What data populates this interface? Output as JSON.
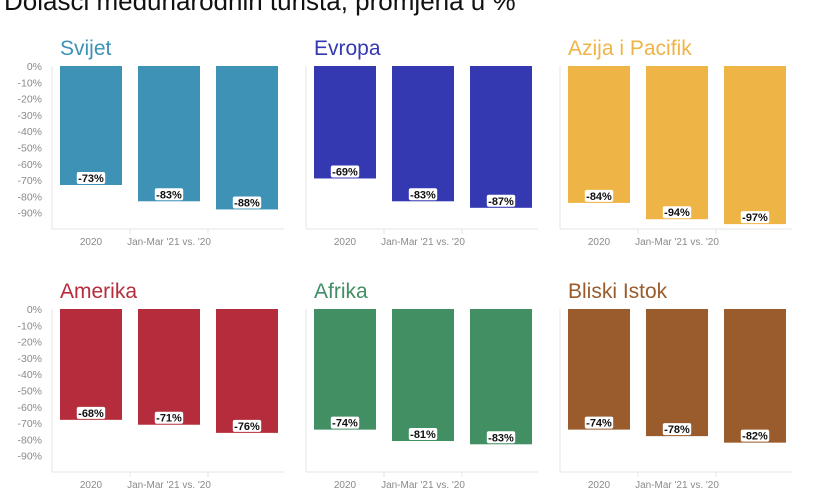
{
  "title": "Dolasci međunarodnih turista, promjena u %",
  "chart_data": [
    {
      "type": "bar",
      "title": "Svijet",
      "color": "#3d92b6",
      "categories": [
        "2020",
        "Jan-Mar '21 vs. '20",
        ""
      ],
      "values": [
        -73,
        -83,
        -88
      ],
      "labels": [
        "-73%",
        "-83%",
        "-88%"
      ],
      "ylim": [
        -100,
        0
      ],
      "yticks": [
        "0%",
        "-10%",
        "-20%",
        "-30%",
        "-40%",
        "-50%",
        "-60%",
        "-70%",
        "-80%",
        "-90%"
      ],
      "grid": false
    },
    {
      "type": "bar",
      "title": "Evropa",
      "color": "#3439b2",
      "categories": [
        "2020",
        "Jan-Mar '21 vs. '20",
        ""
      ],
      "values": [
        -69,
        -83,
        -87
      ],
      "labels": [
        "-69%",
        "-83%",
        "-87%"
      ],
      "ylim": [
        -100,
        0
      ],
      "yticks": [],
      "grid": false
    },
    {
      "type": "bar",
      "title": "Azija i Pacifik",
      "color": "#efb446",
      "categories": [
        "2020",
        "Jan-Mar '21 vs. '20",
        ""
      ],
      "values": [
        -84,
        -94,
        -97
      ],
      "labels": [
        "-84%",
        "-94%",
        "-97%"
      ],
      "ylim": [
        -100,
        0
      ],
      "yticks": [],
      "grid": false
    },
    {
      "type": "bar",
      "title": "Amerika",
      "color": "#b52d3c",
      "categories": [
        "2020",
        "Jan-Mar '21 vs. '20",
        ""
      ],
      "values": [
        -68,
        -71,
        -76
      ],
      "labels": [
        "-68%",
        "-71%",
        "-76%"
      ],
      "ylim": [
        -100,
        0
      ],
      "yticks": [
        "0%",
        "-10%",
        "-20%",
        "-30%",
        "-40%",
        "-50%",
        "-60%",
        "-70%",
        "-80%",
        "-90%"
      ],
      "grid": false
    },
    {
      "type": "bar",
      "title": "Afrika",
      "color": "#418f63",
      "categories": [
        "2020",
        "Jan-Mar '21 vs. '20",
        ""
      ],
      "values": [
        -74,
        -81,
        -83
      ],
      "labels": [
        "-74%",
        "-81%",
        "-83%"
      ],
      "ylim": [
        -100,
        0
      ],
      "yticks": [],
      "grid": false
    },
    {
      "type": "bar",
      "title": "Bliski Istok",
      "color": "#9a5c2c",
      "categories": [
        "2020",
        "Jan-Mar '21 vs. '20",
        ""
      ],
      "values": [
        -74,
        -78,
        -82
      ],
      "labels": [
        "-74%",
        "-78%",
        "-82%"
      ],
      "ylim": [
        -100,
        0
      ],
      "yticks": [],
      "grid": false
    }
  ]
}
